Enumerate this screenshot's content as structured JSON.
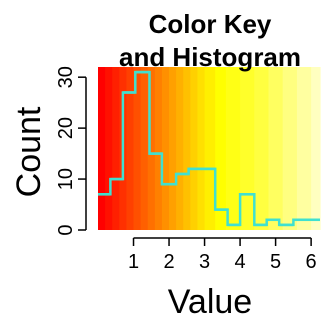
{
  "chart_data": {
    "type": "histogram",
    "title_lines": [
      "Color Key",
      "and Histogram"
    ],
    "xlabel": "Value",
    "ylabel": "Count",
    "xlim": [
      0,
      6.25
    ],
    "ylim": [
      0,
      32
    ],
    "x_ticks": [
      1,
      2,
      3,
      4,
      5,
      6
    ],
    "y_ticks": [
      0,
      10,
      20,
      30
    ],
    "grid": false,
    "line_color": "#40e0d0",
    "color_key": {
      "scheme": "heat",
      "bands": [
        {
          "from": 0.0,
          "to": 0.2,
          "color": "#ff0000"
        },
        {
          "from": 0.2,
          "to": 0.4,
          "color": "#ff1000"
        },
        {
          "from": 0.4,
          "to": 0.6,
          "color": "#ff2000"
        },
        {
          "from": 0.6,
          "to": 0.8,
          "color": "#ff3000"
        },
        {
          "from": 0.8,
          "to": 1.0,
          "color": "#ff4000"
        },
        {
          "from": 1.0,
          "to": 1.2,
          "color": "#ff5000"
        },
        {
          "from": 1.2,
          "to": 1.4,
          "color": "#ff6000"
        },
        {
          "from": 1.4,
          "to": 1.6,
          "color": "#ff7000"
        },
        {
          "from": 1.6,
          "to": 1.8,
          "color": "#ff8000"
        },
        {
          "from": 1.8,
          "to": 2.0,
          "color": "#ff9000"
        },
        {
          "from": 2.0,
          "to": 2.2,
          "color": "#ffa000"
        },
        {
          "from": 2.2,
          "to": 2.4,
          "color": "#ffb000"
        },
        {
          "from": 2.4,
          "to": 2.6,
          "color": "#ffc000"
        },
        {
          "from": 2.6,
          "to": 2.8,
          "color": "#ffd000"
        },
        {
          "from": 2.8,
          "to": 3.0,
          "color": "#ffe000"
        },
        {
          "from": 3.0,
          "to": 3.3,
          "color": "#ffef00"
        },
        {
          "from": 3.3,
          "to": 3.6,
          "color": "#ffff00"
        },
        {
          "from": 3.6,
          "to": 4.0,
          "color": "#ffff15"
        },
        {
          "from": 4.0,
          "to": 4.4,
          "color": "#ffff2a"
        },
        {
          "from": 4.4,
          "to": 4.8,
          "color": "#ffff40"
        },
        {
          "from": 4.8,
          "to": 5.2,
          "color": "#ffff60"
        },
        {
          "from": 5.2,
          "to": 5.6,
          "color": "#ffff80"
        },
        {
          "from": 5.6,
          "to": 6.0,
          "color": "#ffffa0"
        },
        {
          "from": 6.0,
          "to": 6.25,
          "color": "#ffffc0"
        }
      ]
    },
    "bins": [
      {
        "from": 0.0,
        "to": 0.35,
        "count": 7
      },
      {
        "from": 0.35,
        "to": 0.7,
        "count": 10
      },
      {
        "from": 0.7,
        "to": 1.05,
        "count": 27
      },
      {
        "from": 1.05,
        "to": 1.45,
        "count": 31
      },
      {
        "from": 1.45,
        "to": 1.8,
        "count": 15
      },
      {
        "from": 1.8,
        "to": 2.2,
        "count": 9
      },
      {
        "from": 2.2,
        "to": 2.55,
        "count": 11
      },
      {
        "from": 2.55,
        "to": 2.9,
        "count": 12
      },
      {
        "from": 2.9,
        "to": 3.3,
        "count": 12
      },
      {
        "from": 3.3,
        "to": 3.65,
        "count": 4
      },
      {
        "from": 3.65,
        "to": 4.0,
        "count": 1
      },
      {
        "from": 4.0,
        "to": 4.4,
        "count": 7
      },
      {
        "from": 4.4,
        "to": 4.75,
        "count": 1
      },
      {
        "from": 4.75,
        "to": 5.1,
        "count": 2
      },
      {
        "from": 5.1,
        "to": 5.5,
        "count": 1
      },
      {
        "from": 5.5,
        "to": 5.85,
        "count": 2
      },
      {
        "from": 5.85,
        "to": 6.25,
        "count": 2
      }
    ]
  }
}
